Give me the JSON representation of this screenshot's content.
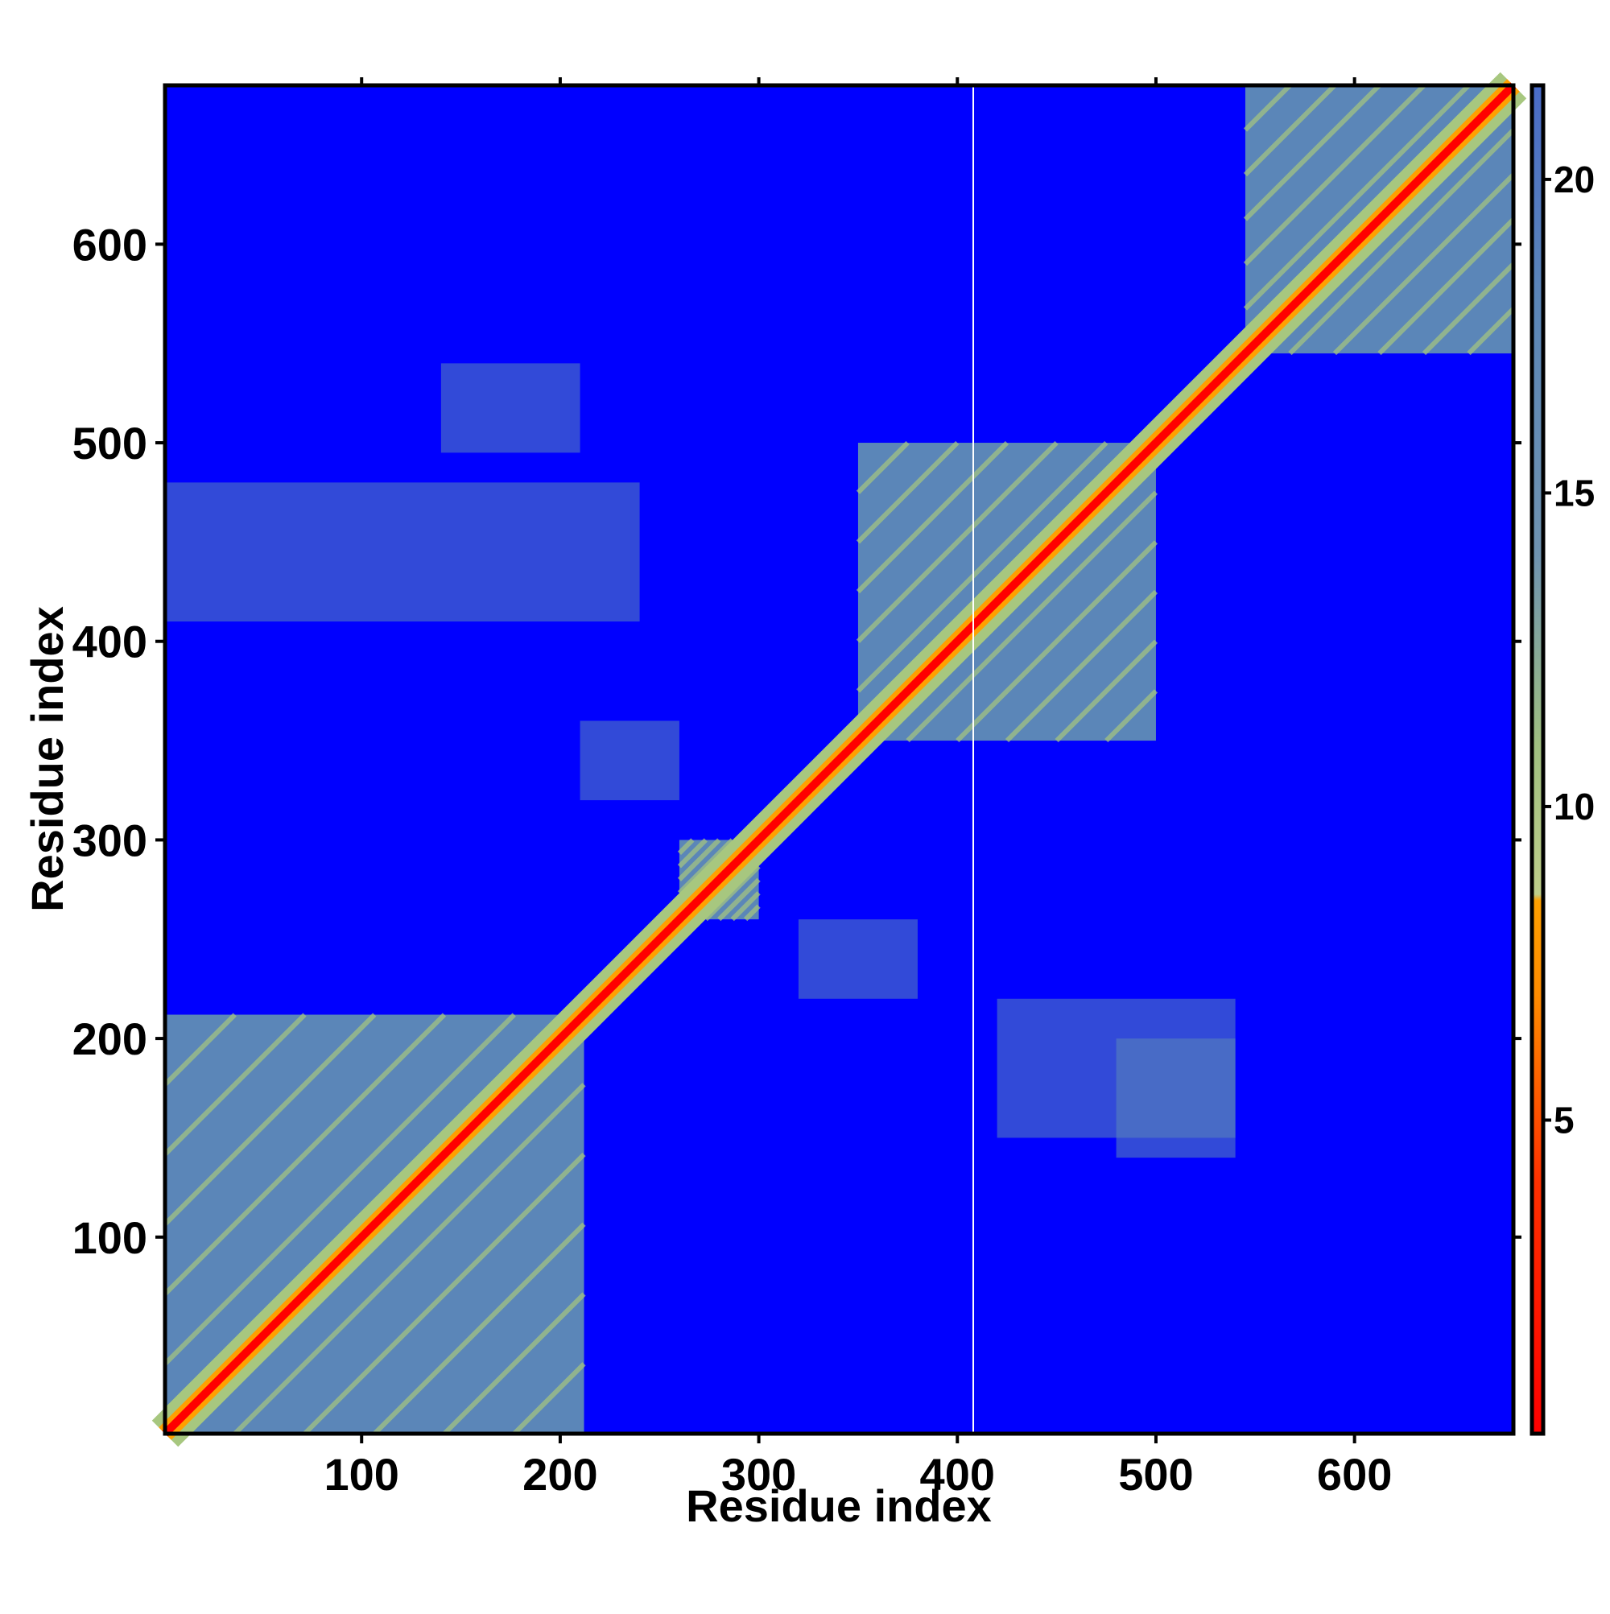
{
  "chart_data": {
    "type": "heatmap",
    "title": "",
    "xlabel": "Residue index",
    "ylabel": "Residue index",
    "xlim": [
      1,
      680
    ],
    "ylim": [
      1,
      680
    ],
    "x_ticks": [
      100,
      200,
      300,
      400,
      500,
      600
    ],
    "y_ticks": [
      100,
      200,
      300,
      400,
      500,
      600
    ],
    "colorbar": {
      "range": [
        0,
        21.5
      ],
      "ticks": [
        5,
        10,
        15,
        20
      ],
      "colors": {
        "very_close": "#ff0000",
        "close": "#ff8c00",
        "mid": "#ffa000",
        "near": "#a7c77f",
        "contact": "#5b86b8",
        "far": "#0000ff"
      },
      "stops": [
        {
          "value": 0,
          "color": "#ff0000"
        },
        {
          "value": 4,
          "color": "#ff3000"
        },
        {
          "value": 7,
          "color": "#ff8c00"
        },
        {
          "value": 8.5,
          "color": "#ffa000"
        },
        {
          "value": 8.6,
          "color": "#bfcf8a"
        },
        {
          "value": 11,
          "color": "#9fbf80"
        },
        {
          "value": 14,
          "color": "#6f93b0"
        },
        {
          "value": 18,
          "color": "#5b86b8"
        },
        {
          "value": 21.5,
          "color": "#4a6cc8"
        }
      ]
    },
    "diagonal": {
      "from": 1,
      "to": 680
    },
    "domains": [
      {
        "x": [
          1,
          212
        ],
        "y": [
          1,
          212
        ]
      },
      {
        "x": [
          350,
          500
        ],
        "y": [
          350,
          500
        ]
      },
      {
        "x": [
          545,
          680
        ],
        "y": [
          545,
          680
        ]
      },
      {
        "x": [
          260,
          300
        ],
        "y": [
          260,
          300
        ]
      }
    ],
    "off_diagonal_regions": [
      {
        "x": [
          1,
          240
        ],
        "y": [
          410,
          480
        ]
      },
      {
        "x": [
          420,
          540
        ],
        "y": [
          150,
          220
        ]
      },
      {
        "x": [
          210,
          260
        ],
        "y": [
          320,
          360
        ]
      },
      {
        "x": [
          320,
          380
        ],
        "y": [
          220,
          260
        ]
      },
      {
        "x": [
          140,
          210
        ],
        "y": [
          495,
          540
        ]
      },
      {
        "x": [
          480,
          540
        ],
        "y": [
          140,
          200
        ]
      }
    ],
    "highlight_column": 408
  }
}
